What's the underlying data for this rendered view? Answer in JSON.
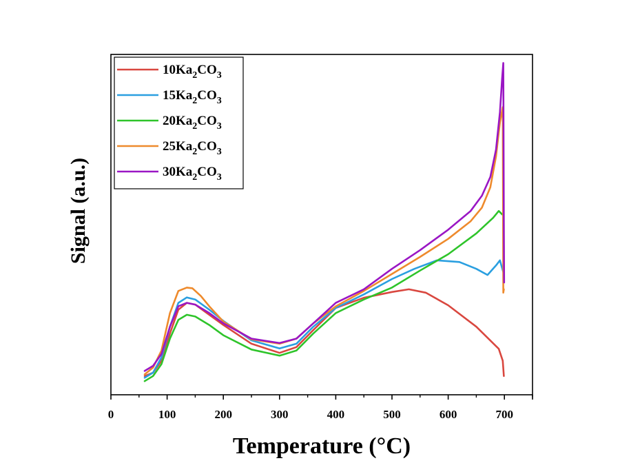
{
  "chart_data": {
    "type": "line",
    "title": "",
    "xlabel": "Temperature (°C)",
    "ylabel": "Signal (a.u.)",
    "xlim": [
      0,
      750
    ],
    "ylim": [
      0,
      100
    ],
    "x_ticks": [
      0,
      100,
      200,
      300,
      400,
      500,
      600,
      700
    ],
    "x_tick_labels": [
      "0",
      "100",
      "200",
      "300",
      "400",
      "500",
      "600",
      "700"
    ],
    "y_ticks": [],
    "grid": false,
    "legend_position": "top-left",
    "series": [
      {
        "name": "10Ka2CO3",
        "label_main": "10Ka",
        "label_sub1": "2",
        "label_mid": "CO",
        "label_sub2": "3",
        "color": "#d9473f",
        "x": [
          60,
          75,
          90,
          105,
          120,
          135,
          150,
          175,
          200,
          250,
          300,
          330,
          360,
          400,
          450,
          500,
          530,
          560,
          600,
          650,
          690,
          697,
          699
        ],
        "y": [
          5.5,
          6.5,
          10,
          18,
          25,
          27,
          26.5,
          23.5,
          20.5,
          15,
          12.3,
          14,
          19,
          25.5,
          28.5,
          30.2,
          31,
          30,
          26.3,
          20,
          13.5,
          10,
          5.5
        ]
      },
      {
        "name": "15Ka2CO3",
        "label_main": "15Ka",
        "label_sub1": "2",
        "label_mid": "CO",
        "label_sub2": "3",
        "color": "#2a9fe0",
        "x": [
          60,
          75,
          90,
          105,
          120,
          135,
          150,
          175,
          200,
          250,
          300,
          330,
          360,
          400,
          450,
          500,
          540,
          580,
          620,
          650,
          670,
          685,
          692,
          698
        ],
        "y": [
          5,
          6.5,
          11,
          20,
          27,
          28.6,
          28,
          25,
          21.7,
          16,
          13.6,
          15,
          20,
          25.5,
          29.5,
          34,
          37,
          39.5,
          39,
          37,
          35.2,
          38,
          39.5,
          36
        ]
      },
      {
        "name": "20Ka2CO3",
        "label_main": "20Ka",
        "label_sub1": "2",
        "label_mid": "CO",
        "label_sub2": "3",
        "color": "#2ec42a",
        "x": [
          60,
          75,
          90,
          105,
          120,
          135,
          150,
          175,
          200,
          250,
          300,
          330,
          360,
          400,
          450,
          500,
          550,
          600,
          650,
          680,
          690,
          696
        ],
        "y": [
          4,
          5.5,
          9,
          16.5,
          22,
          23.5,
          23,
          20.5,
          17.5,
          13.3,
          11.5,
          13,
          18,
          24,
          28,
          31.5,
          36.5,
          41.3,
          47.4,
          52,
          54,
          53
        ]
      },
      {
        "name": "25Ka2CO3",
        "label_main": "25Ka",
        "label_sub1": "2",
        "label_mid": "CO",
        "label_sub2": "3",
        "color": "#ee8a2c",
        "x": [
          60,
          75,
          90,
          105,
          120,
          135,
          145,
          160,
          175,
          200,
          250,
          300,
          330,
          360,
          400,
          450,
          500,
          550,
          600,
          640,
          660,
          675,
          685,
          692,
          697,
          698,
          699
        ],
        "y": [
          6,
          8,
          13,
          24,
          30.5,
          31.5,
          31.3,
          29,
          26,
          21.5,
          16.3,
          15,
          16.5,
          21,
          26,
          30.5,
          35.5,
          40.5,
          45.8,
          51,
          55,
          61,
          70,
          80,
          84.5,
          30,
          31
        ]
      },
      {
        "name": "30Ka2CO3",
        "label_main": "30Ka",
        "label_sub1": "2",
        "label_mid": "CO",
        "label_sub2": "3",
        "color": "#9a16c4",
        "x": [
          60,
          75,
          90,
          105,
          120,
          135,
          150,
          175,
          200,
          250,
          300,
          330,
          360,
          400,
          450,
          500,
          550,
          600,
          640,
          660,
          675,
          685,
          692,
          696,
          698,
          699,
          699.5
        ],
        "y": [
          7,
          8.5,
          12,
          20,
          26,
          27,
          26.5,
          24,
          21,
          16.5,
          15.2,
          16.5,
          21,
          27,
          31,
          37,
          42.5,
          48.5,
          54,
          58.5,
          64,
          72,
          83,
          93,
          97.5,
          50,
          33
        ]
      }
    ]
  }
}
